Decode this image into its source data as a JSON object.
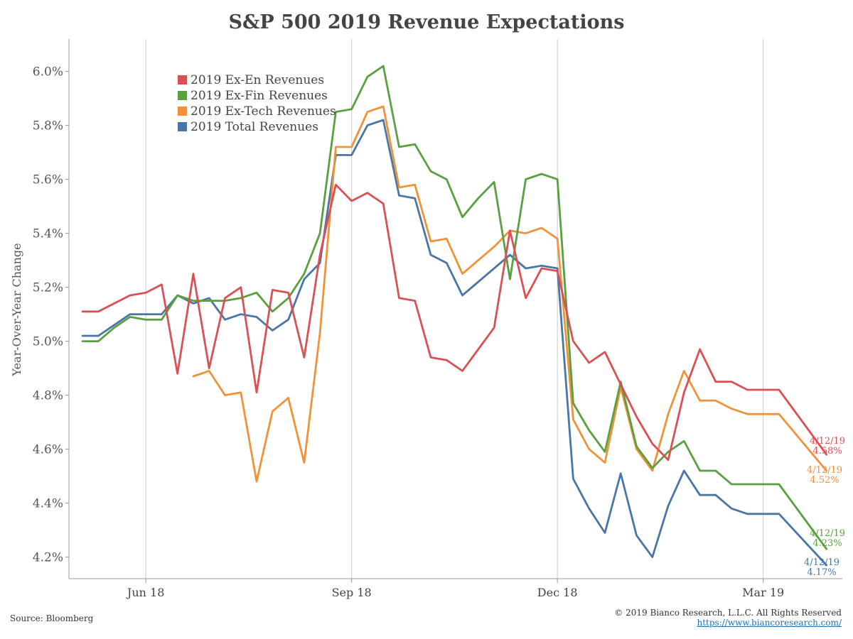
{
  "chart_data": {
    "type": "line",
    "title": "S&P 500 2019 Revenue Expectations",
    "xlabel": "",
    "ylabel": "Year-Over-Year Change",
    "ylim": [
      4.12,
      6.12
    ],
    "yticks": [
      "6.0%",
      "5.8%",
      "5.6%",
      "5.4%",
      "5.2%",
      "5.0%",
      "4.8%",
      "4.6%",
      "4.4%",
      "4.2%"
    ],
    "ytick_values": [
      6.0,
      5.8,
      5.6,
      5.4,
      5.2,
      5.0,
      4.8,
      4.6,
      4.4,
      4.2
    ],
    "xlim": [
      "2018-05-12",
      "2019-04-19"
    ],
    "xticks": [
      {
        "label": "Jun 18",
        "date": "2018-06-15"
      },
      {
        "label": "Sep 18",
        "date": "2018-09-14"
      },
      {
        "label": "Dec 18",
        "date": "2018-12-14"
      },
      {
        "label": "Mar 19",
        "date": "2019-03-15"
      }
    ],
    "grid": "vertical lines at x ticks",
    "legend_placement": "top-left",
    "dates": [
      "2018-05-18",
      "2018-05-25",
      "2018-06-01",
      "2018-06-08",
      "2018-06-15",
      "2018-06-22",
      "2018-06-29",
      "2018-07-06",
      "2018-07-13",
      "2018-07-20",
      "2018-07-27",
      "2018-08-03",
      "2018-08-10",
      "2018-08-17",
      "2018-08-24",
      "2018-08-31",
      "2018-09-07",
      "2018-09-14",
      "2018-09-21",
      "2018-09-28",
      "2018-10-05",
      "2018-10-12",
      "2018-10-19",
      "2018-10-26",
      "2018-11-02",
      "2018-11-09",
      "2018-11-16",
      "2018-11-23",
      "2018-11-30",
      "2018-12-07",
      "2018-12-14",
      "2018-12-21",
      "2018-12-28",
      "2019-01-04",
      "2019-01-11",
      "2019-01-18",
      "2019-01-25",
      "2019-02-01",
      "2019-02-08",
      "2019-02-15",
      "2019-02-22",
      "2019-03-01",
      "2019-03-08",
      "2019-03-15",
      "2019-03-22",
      "2019-04-12"
    ],
    "series": [
      {
        "name": "2019 Ex-En Revenues",
        "color": "#d95055",
        "values": [
          5.11,
          5.11,
          5.14,
          5.17,
          5.18,
          5.21,
          4.88,
          5.25,
          4.9,
          5.16,
          5.2,
          4.81,
          5.19,
          5.18,
          4.94,
          5.32,
          5.58,
          5.52,
          5.55,
          5.51,
          5.16,
          5.15,
          4.94,
          4.93,
          4.89,
          4.97,
          5.05,
          5.41,
          5.16,
          5.27,
          5.26,
          5.0,
          4.92,
          4.96,
          4.84,
          4.72,
          4.62,
          4.56,
          4.81,
          4.97,
          4.85,
          4.85,
          4.82,
          4.82,
          4.82,
          4.58
        ],
        "end_label": "4/12/19",
        "end_value": "4.58%"
      },
      {
        "name": "2019 Ex-Fin Revenues",
        "color": "#5aa040",
        "values": [
          5.0,
          5.0,
          5.05,
          5.09,
          5.08,
          5.08,
          5.17,
          5.15,
          5.15,
          5.15,
          5.16,
          5.18,
          5.11,
          5.16,
          5.25,
          5.4,
          5.85,
          5.86,
          5.98,
          6.02,
          5.72,
          5.73,
          5.63,
          5.6,
          5.46,
          5.53,
          5.59,
          5.23,
          5.6,
          5.62,
          5.6,
          4.77,
          4.67,
          4.59,
          4.85,
          4.61,
          4.53,
          4.59,
          4.63,
          4.52,
          4.52,
          4.47,
          4.47,
          4.47,
          4.47,
          4.23
        ],
        "end_label": "4/12/19",
        "end_value": "4.23%"
      },
      {
        "name": "2019 Ex-Tech Revenues",
        "color": "#f0923a",
        "values": [
          null,
          null,
          null,
          null,
          null,
          null,
          null,
          4.87,
          4.89,
          4.8,
          4.81,
          4.48,
          4.74,
          4.79,
          4.55,
          5.03,
          5.72,
          5.72,
          5.85,
          5.87,
          5.57,
          5.58,
          5.37,
          5.38,
          5.25,
          5.3,
          5.35,
          5.41,
          5.4,
          5.42,
          5.38,
          4.71,
          4.6,
          4.55,
          4.83,
          4.6,
          4.52,
          4.73,
          4.89,
          4.78,
          4.78,
          4.75,
          4.73,
          4.73,
          4.73,
          4.52
        ],
        "end_label": "4/12/19",
        "end_value": "4.52%"
      },
      {
        "name": "2019 Total Revenues",
        "color": "#4a76a5",
        "values": [
          5.02,
          5.02,
          5.06,
          5.1,
          5.1,
          5.1,
          5.17,
          5.14,
          5.16,
          5.08,
          5.1,
          5.09,
          5.04,
          5.08,
          5.23,
          5.29,
          5.69,
          5.69,
          5.8,
          5.82,
          5.54,
          5.53,
          5.32,
          5.29,
          5.17,
          5.22,
          5.27,
          5.32,
          5.27,
          5.28,
          5.27,
          4.49,
          4.38,
          4.29,
          4.51,
          4.28,
          4.2,
          4.39,
          4.52,
          4.43,
          4.43,
          4.38,
          4.36,
          4.36,
          4.36,
          4.17
        ],
        "end_label": "4/12/19",
        "end_value": "4.17%"
      }
    ]
  },
  "footer": {
    "source": "Source: Bloomberg",
    "copyright": "© 2019 Bianco Research, L.L.C. All Rights Reserved",
    "url": "https://www.biancoresearch.com/"
  }
}
